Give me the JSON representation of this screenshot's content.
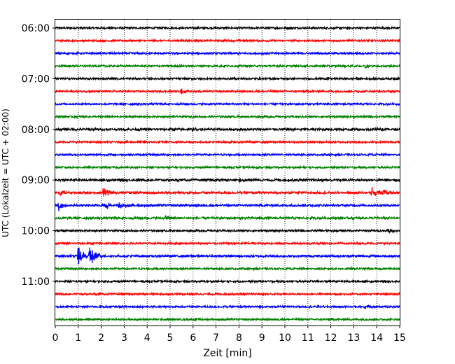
{
  "chart_data": {
    "type": "line",
    "title": "",
    "xlabel": "Zeit  [min]",
    "ylabel": "UTC (Lokalzeit = UTC + 02:00)",
    "xlim": [
      0,
      15
    ],
    "x_ticks": [
      0,
      1,
      2,
      3,
      4,
      5,
      6,
      7,
      8,
      9,
      10,
      11,
      12,
      13,
      14,
      15
    ],
    "y_tick_labels": [
      "06:00",
      "07:00",
      "08:00",
      "09:00",
      "10:00",
      "11:00"
    ],
    "grid": "vertical dotted lines at each minute",
    "trace_colors": [
      "#000000",
      "#ff0000",
      "#0000ff",
      "#008000"
    ],
    "traces": [
      {
        "start": "06:00",
        "color": "#000000",
        "amplitude": 1.0,
        "events": []
      },
      {
        "start": "06:15",
        "color": "#ff0000",
        "amplitude": 1.0,
        "events": []
      },
      {
        "start": "06:30",
        "color": "#0000ff",
        "amplitude": 1.0,
        "events": []
      },
      {
        "start": "06:45",
        "color": "#008000",
        "amplitude": 1.0,
        "events": [
          {
            "t": 13.5,
            "amp": 3
          }
        ]
      },
      {
        "start": "07:00",
        "color": "#000000",
        "amplitude": 1.0,
        "events": []
      },
      {
        "start": "07:15",
        "color": "#ff0000",
        "amplitude": 1.0,
        "events": [
          {
            "t": 5.5,
            "amp": 4
          }
        ]
      },
      {
        "start": "07:30",
        "color": "#0000ff",
        "amplitude": 1.0,
        "events": []
      },
      {
        "start": "07:45",
        "color": "#008000",
        "amplitude": 1.0,
        "events": []
      },
      {
        "start": "08:00",
        "color": "#000000",
        "amplitude": 1.2,
        "events": [
          {
            "t": 6.0,
            "amp": 3
          },
          {
            "t": 14.0,
            "amp": 4
          }
        ]
      },
      {
        "start": "08:15",
        "color": "#ff0000",
        "amplitude": 1.0,
        "events": []
      },
      {
        "start": "08:30",
        "color": "#0000ff",
        "amplitude": 1.0,
        "events": []
      },
      {
        "start": "08:45",
        "color": "#008000",
        "amplitude": 1.0,
        "events": []
      },
      {
        "start": "09:00",
        "color": "#000000",
        "amplitude": 1.2,
        "events": [
          {
            "t": 8.0,
            "amp": 3
          }
        ]
      },
      {
        "start": "09:15",
        "color": "#ff0000",
        "amplitude": 1.2,
        "events": [
          {
            "t": 0.2,
            "amp": 4
          },
          {
            "t": 2.1,
            "amp": 9
          },
          {
            "t": 13.8,
            "amp": 8
          },
          {
            "t": 14.3,
            "amp": 6
          }
        ]
      },
      {
        "start": "09:30",
        "color": "#0000ff",
        "amplitude": 1.2,
        "events": [
          {
            "t": 0.15,
            "amp": 7
          },
          {
            "t": 2.2,
            "amp": 5
          },
          {
            "t": 2.8,
            "amp": 5
          }
        ]
      },
      {
        "start": "09:45",
        "color": "#008000",
        "amplitude": 1.2,
        "events": [
          {
            "t": 4.8,
            "amp": 3
          }
        ]
      },
      {
        "start": "10:00",
        "color": "#000000",
        "amplitude": 1.0,
        "events": [
          {
            "t": 14.5,
            "amp": 3
          }
        ]
      },
      {
        "start": "10:15",
        "color": "#ff0000",
        "amplitude": 1.0,
        "events": []
      },
      {
        "start": "10:30",
        "color": "#0000ff",
        "amplitude": 1.2,
        "events": [
          {
            "t": 1.0,
            "amp": 14
          },
          {
            "t": 1.5,
            "amp": 18
          }
        ]
      },
      {
        "start": "10:45",
        "color": "#008000",
        "amplitude": 1.0,
        "events": []
      },
      {
        "start": "11:00",
        "color": "#000000",
        "amplitude": 1.0,
        "events": []
      },
      {
        "start": "11:15",
        "color": "#ff0000",
        "amplitude": 1.0,
        "events": []
      },
      {
        "start": "11:30",
        "color": "#0000ff",
        "amplitude": 1.0,
        "events": [
          {
            "t": 13.5,
            "amp": 3
          }
        ]
      },
      {
        "start": "11:45",
        "color": "#008000",
        "amplitude": 1.0,
        "events": []
      }
    ]
  }
}
